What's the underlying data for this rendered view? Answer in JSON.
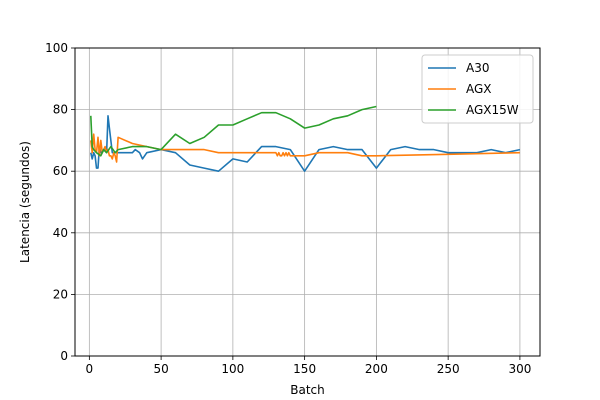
{
  "chart_data": {
    "type": "line",
    "xlabel": "Batch",
    "ylabel": "Latencia (segundos)",
    "xlim": [
      -10,
      314
    ],
    "ylim": [
      0,
      100
    ],
    "xticks": [
      0,
      50,
      100,
      150,
      200,
      250,
      300
    ],
    "yticks": [
      0,
      20,
      40,
      60,
      80,
      100
    ],
    "grid": true,
    "legend": "top-right",
    "series": [
      {
        "name": "A30",
        "color": "#1f77b4",
        "x": [
          1,
          2,
          3,
          4,
          5,
          6,
          7,
          8,
          10,
          12,
          13,
          14,
          16,
          18,
          20,
          25,
          30,
          32,
          35,
          37,
          40,
          50,
          60,
          70,
          80,
          90,
          100,
          110,
          120,
          130,
          140,
          150,
          160,
          170,
          180,
          190,
          200,
          210,
          220,
          230,
          240,
          250,
          260,
          270,
          280,
          290,
          300
        ],
        "y": [
          66,
          64,
          66,
          65,
          61,
          61,
          68,
          66,
          67,
          66,
          78,
          74,
          66,
          66,
          66,
          66,
          66,
          67,
          66,
          64,
          66,
          67,
          66,
          62,
          61,
          60,
          64,
          63,
          68,
          68,
          67,
          60,
          67,
          68,
          67,
          67,
          61,
          67,
          68,
          67,
          67,
          66,
          66,
          66,
          67,
          66,
          67
        ]
      },
      {
        "name": "AGX",
        "color": "#ff7f0e",
        "x": [
          1,
          2,
          3,
          4,
          5,
          6,
          7,
          8,
          9,
          10,
          11,
          12,
          13,
          14,
          15,
          16,
          17,
          18,
          19,
          20,
          30,
          40,
          50,
          60,
          70,
          80,
          90,
          100,
          110,
          120,
          130,
          131,
          132,
          133,
          134,
          135,
          136,
          137,
          138,
          139,
          140,
          150,
          160,
          170,
          180,
          190,
          200,
          250,
          300
        ],
        "y": [
          70,
          66,
          72,
          67,
          66,
          71,
          65,
          70,
          66,
          67,
          68,
          66,
          67,
          65,
          65,
          64,
          66,
          65,
          63,
          71,
          69,
          68,
          67,
          67,
          67,
          67,
          66,
          66,
          66,
          66,
          66,
          65,
          66,
          65,
          65,
          66,
          65,
          66,
          65,
          66,
          65,
          65,
          66,
          66,
          66,
          65,
          65,
          65.5,
          66
        ]
      },
      {
        "name": "AGX15W",
        "color": "#2ca02c",
        "x": [
          1,
          2,
          3,
          5,
          8,
          10,
          12,
          15,
          18,
          20,
          30,
          40,
          50,
          60,
          70,
          80,
          90,
          100,
          110,
          120,
          130,
          140,
          150,
          160,
          170,
          180,
          190,
          200
        ],
        "y": [
          78,
          68,
          67,
          66,
          65,
          67,
          66,
          68,
          66,
          67,
          68,
          68,
          67,
          72,
          69,
          71,
          75,
          75,
          77,
          79,
          79,
          77,
          74,
          75,
          77,
          78,
          80,
          81
        ]
      }
    ]
  }
}
